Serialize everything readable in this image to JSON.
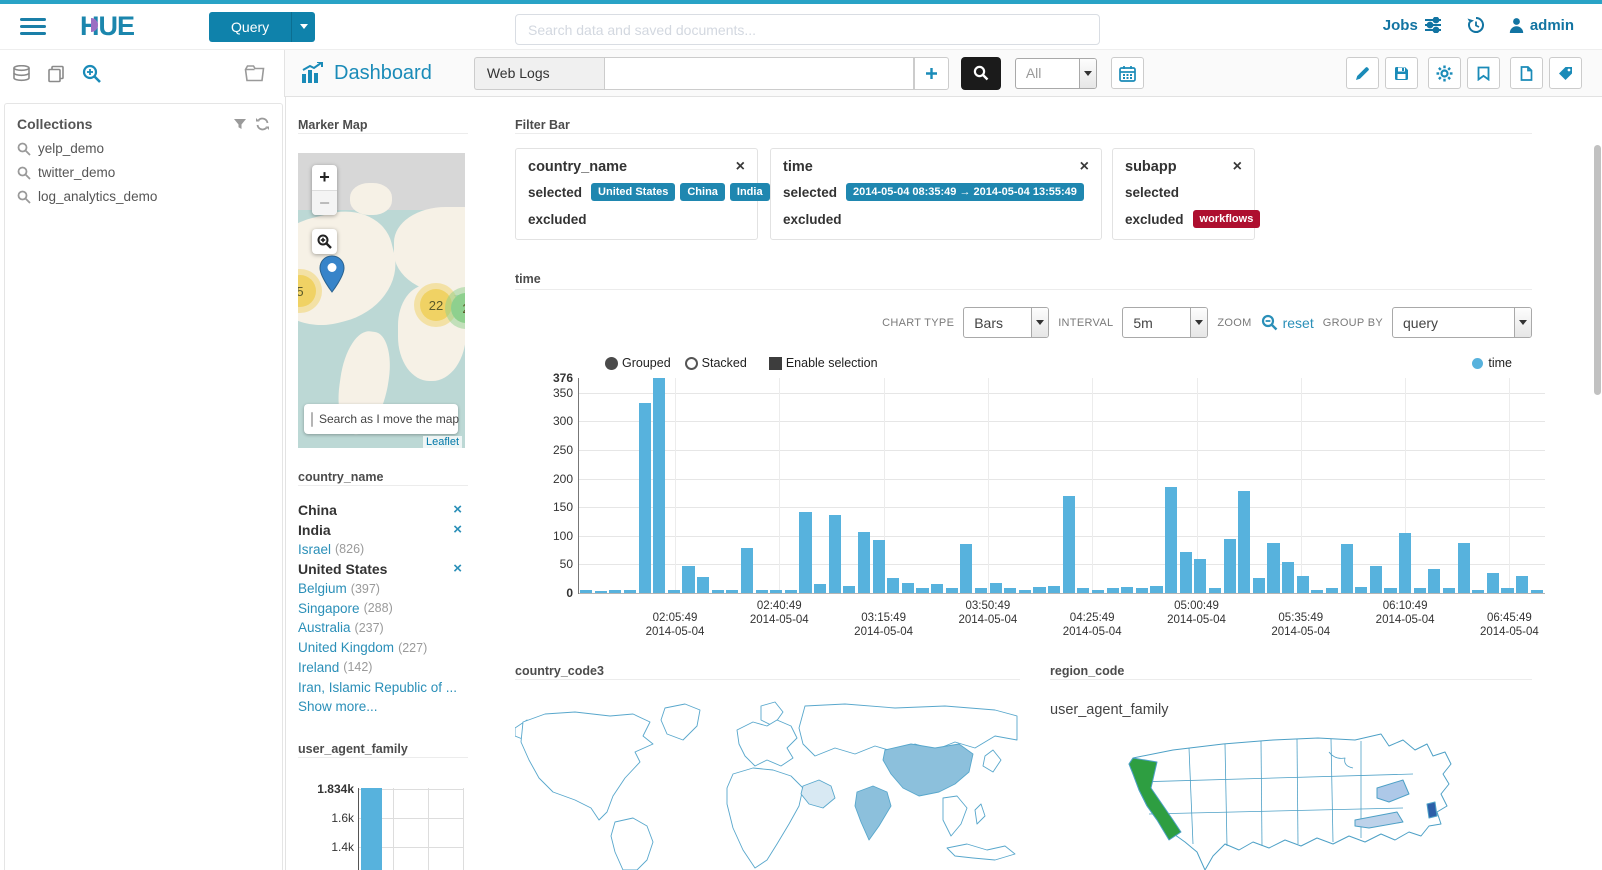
{
  "topbar": {
    "brand": "HUE",
    "query_label": "Query",
    "search_placeholder": "Search data and saved documents...",
    "jobs_label": "Jobs",
    "user_label": "admin"
  },
  "appbar": {
    "title": "Dashboard",
    "collection_label": "Web Logs",
    "search_value": "",
    "engine_value": "All"
  },
  "sidebar": {
    "title": "Collections",
    "items": [
      {
        "label": "yelp_demo"
      },
      {
        "label": "twitter_demo"
      },
      {
        "label": "log_analytics_demo"
      }
    ]
  },
  "marker_map": {
    "title": "Marker Map",
    "zoom_in_label": "+",
    "zoom_out_label": "−",
    "clusters": [
      {
        "label": "5",
        "color": "#f0d264"
      },
      {
        "label": "22",
        "color": "#f0d264"
      },
      {
        "label": "2",
        "color": "#8ed08e"
      }
    ],
    "search_checkbox_label": "Search as I move the map",
    "attribution": "Leaflet"
  },
  "filter_bar": {
    "title": "Filter Bar",
    "selected_label": "selected",
    "excluded_label": "excluded",
    "filters": [
      {
        "field": "country_name",
        "selected": [
          "United States",
          "China",
          "India"
        ],
        "excluded": []
      },
      {
        "field": "time",
        "selected": [
          "2014-05-04  08:35:49 → 2014-05-04  13:55:49"
        ],
        "excluded": []
      },
      {
        "field": "subapp",
        "selected": [],
        "excluded": [
          "workflows"
        ]
      }
    ]
  },
  "time_widget": {
    "title": "time",
    "chart_type_label": "CHART TYPE",
    "chart_type_value": "Bars",
    "interval_label": "INTERVAL",
    "interval_value": "5m",
    "zoom_label": "ZOOM",
    "reset_label": "reset",
    "group_by_label": "GROUP BY",
    "group_by_value": "query",
    "mode_grouped": "Grouped",
    "mode_stacked": "Stacked",
    "enable_selection": "Enable selection",
    "legend": "time"
  },
  "country_name_facet": {
    "title": "country_name",
    "items": [
      {
        "label": "China",
        "selected": true
      },
      {
        "label": "India",
        "selected": true
      },
      {
        "label": "Israel",
        "count": "826"
      },
      {
        "label": "United States",
        "selected": true
      },
      {
        "label": "Belgium",
        "count": "397"
      },
      {
        "label": "Singapore",
        "count": "288"
      },
      {
        "label": "Australia",
        "count": "237"
      },
      {
        "label": "United Kingdom",
        "count": "227"
      },
      {
        "label": "Ireland",
        "count": "142"
      },
      {
        "label": "Iran, Islamic Republic of ..."
      }
    ],
    "show_more": "Show more..."
  },
  "user_agent_facet": {
    "title": "user_agent_family"
  },
  "country_code3_widget": {
    "title": "country_code3"
  },
  "region_code_widget": {
    "title": "region_code",
    "overlay_label": "user_agent_family"
  },
  "chart_data": [
    {
      "type": "bar",
      "title": "time",
      "legend": [
        "time"
      ],
      "legend_position": "top-right",
      "interval": "5m",
      "bar_color": "#57b2dd",
      "ylim": [
        0,
        376
      ],
      "y_ticks": [
        376,
        350,
        300,
        250,
        200,
        150,
        100,
        50,
        0
      ],
      "x_ticks": [
        {
          "time": "02:05:49",
          "date": "2014-05-04"
        },
        {
          "time": "02:40:49",
          "date": "2014-05-04"
        },
        {
          "time": "03:15:49",
          "date": "2014-05-04"
        },
        {
          "time": "03:50:49",
          "date": "2014-05-04"
        },
        {
          "time": "04:25:49",
          "date": "2014-05-04"
        },
        {
          "time": "05:00:49",
          "date": "2014-05-04"
        },
        {
          "time": "05:35:49",
          "date": "2014-05-04"
        },
        {
          "time": "06:10:49",
          "date": "2014-05-04"
        },
        {
          "time": "06:45:49",
          "date": "2014-05-04"
        }
      ],
      "values": [
        5,
        4,
        5,
        6,
        333,
        376,
        6,
        48,
        28,
        5,
        6,
        78,
        5,
        5,
        6,
        142,
        16,
        137,
        13,
        107,
        93,
        26,
        18,
        8,
        16,
        9,
        85,
        9,
        17,
        9,
        6,
        10,
        13,
        170,
        9,
        6,
        9,
        11,
        8,
        13,
        185,
        72,
        60,
        9,
        95,
        178,
        26,
        88,
        55,
        30,
        6,
        9,
        85,
        11,
        48,
        9,
        105,
        8,
        42,
        9,
        88,
        6,
        35,
        9,
        30,
        5
      ]
    },
    {
      "type": "bar",
      "title": "user_agent_family",
      "bar_color": "#57b2dd",
      "ylim": [
        0,
        1834
      ],
      "y_tick_labels": [
        "1.834k",
        "1.6k",
        "1.4k"
      ],
      "values": [
        1834
      ]
    }
  ],
  "colors": {
    "accent": "#1a8bb8",
    "bar": "#57b2dd",
    "badge_selected": "#1f87b0",
    "badge_excluded": "#ae0f2f",
    "search_button": "#1b1b1b",
    "cluster_yellow": "#f0d264",
    "cluster_green": "#8ed08e",
    "map_country_highlight": "#8cc0dc",
    "map_country_light": "#d8e9f3",
    "state_green": "#2e9e41",
    "state_dark_blue": "#2d5fa8",
    "state_light_blue": "#bdd2ea"
  },
  "icons": {
    "hamburger-icon": "three horizontal bars",
    "search-icon": "magnifier",
    "zoom-in-icon": "magnifier with plus",
    "zoom-out-icon": "magnifier with minus",
    "database-icon": "stacked cylinders",
    "copy-icon": "overlapping pages",
    "folder-icon": "folder outline",
    "filter-icon": "funnel",
    "refresh-icon": "circular arrows",
    "jobs-sliders-icon": "adjust sliders",
    "history-icon": "clock with back arrow",
    "user-icon": "person silhouette",
    "chart-icon": "bar chart with arrow",
    "plus-icon": "plus sign",
    "calendar-icon": "calendar grid",
    "pencil-icon": "pencil",
    "save-icon": "floppy disk",
    "gear-icon": "gear",
    "bookmark-icon": "bookmark ribbon",
    "file-icon": "document page",
    "tag-icon": "label tag",
    "close-icon": "x cross",
    "marker-pin-icon": "map pin"
  }
}
